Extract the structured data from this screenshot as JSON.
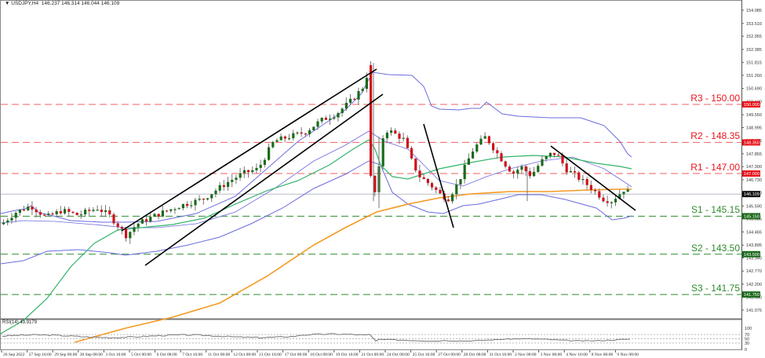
{
  "header": {
    "symbol": "USDJPY,H4",
    "ohlc": "146.237 146.314 146.044 146.109",
    "title_full": "USDJPY,H4  146.237 146.314 146.044 146.109"
  },
  "rsi_panel": {
    "label": "RSI(14) 43.9179",
    "levels": [
      "100",
      "70",
      "50",
      "30",
      "0"
    ]
  },
  "colors": {
    "bull": "#1a6b1a",
    "bear": "#d0101a",
    "resistance": "#f06060",
    "support": "#2e8b2e",
    "bollinger": "#6b6bdf",
    "ma_green": "#33b36b",
    "ma_orange": "#f59a23",
    "trendline": "#000000",
    "current_price": "#b8bcc8"
  },
  "levels": [
    {
      "name": "R3",
      "label": "R3 - 150.00",
      "value": 150.0,
      "tag": "150.000",
      "type": "resistance"
    },
    {
      "name": "R2",
      "label": "R2 - 148.35",
      "value": 148.35,
      "tag": "148.350",
      "type": "resistance"
    },
    {
      "name": "R1",
      "label": "R1 - 147.00",
      "value": 147.0,
      "tag": "147.000",
      "type": "resistance"
    },
    {
      "name": "S1",
      "label": "S1 - 145.15",
      "value": 145.15,
      "tag": "145.150",
      "type": "support"
    },
    {
      "name": "S2",
      "label": "S2 - 143.50",
      "value": 143.5,
      "tag": "143.500",
      "type": "support"
    },
    {
      "name": "S3",
      "label": "S3 - 141.75",
      "value": 141.75,
      "tag": "141.750",
      "type": "support"
    }
  ],
  "current_price_tag": "146.109",
  "price_axis": [
    "154.085",
    "153.510",
    "152.955",
    "152.385",
    "151.815",
    "151.260",
    "150.690",
    "150.120",
    "149.550",
    "148.995",
    "148.425",
    "147.855",
    "147.300",
    "146.730",
    "146.160",
    "145.590",
    "145.035",
    "144.465",
    "143.895",
    "143.340",
    "142.770",
    "142.200",
    "141.630",
    "141.075"
  ],
  "time_axis": [
    "26 Sep 2022",
    "27 Sep 16:00",
    "29 Sep 00:00",
    "30 Sep 08:00",
    "3 Oct 16:00",
    "5 Oct 00:00",
    "6 Oct 08:00",
    "7 Oct 16:00",
    "11 Oct 00:00",
    "12 Oct 08:00",
    "13 Oct 16:00",
    "17 Oct 00:00",
    "18 Oct 08:00",
    "19 Oct 16:00",
    "21 Oct 00:00",
    "24 Oct 08:00",
    "25 Oct 16:00",
    "27 Oct 00:00",
    "28 Oct 08:00",
    "31 Oct 16:00",
    "2 Nov 00:00",
    "3 Nov 08:00",
    "4 Nov 16:00",
    "8 Nov 00:00",
    "9 Nov 08:00"
  ],
  "chart_data": {
    "type": "candlestick",
    "title": "USDJPY,H4",
    "ylim": [
      140.9,
      154.4
    ],
    "x_range": [
      "26 Sep 2022",
      "9 Nov 2022"
    ],
    "last": {
      "open": 146.237,
      "high": 146.314,
      "low": 146.044,
      "close": 146.109
    },
    "levels": {
      "R3": 150.0,
      "R2": 148.35,
      "R1": 147.0,
      "S1": 145.15,
      "S2": 143.5,
      "S3": 141.75
    },
    "annotations": [
      "ascending channel 5 Oct – 21 Oct",
      "sharp drop 21 Oct from ~151.9",
      "descending trendline 3 Nov – 10 Nov"
    ],
    "indicators": [
      "Bollinger Bands",
      "MA green",
      "MA orange",
      "RSI(14) 43.9179"
    ]
  }
}
